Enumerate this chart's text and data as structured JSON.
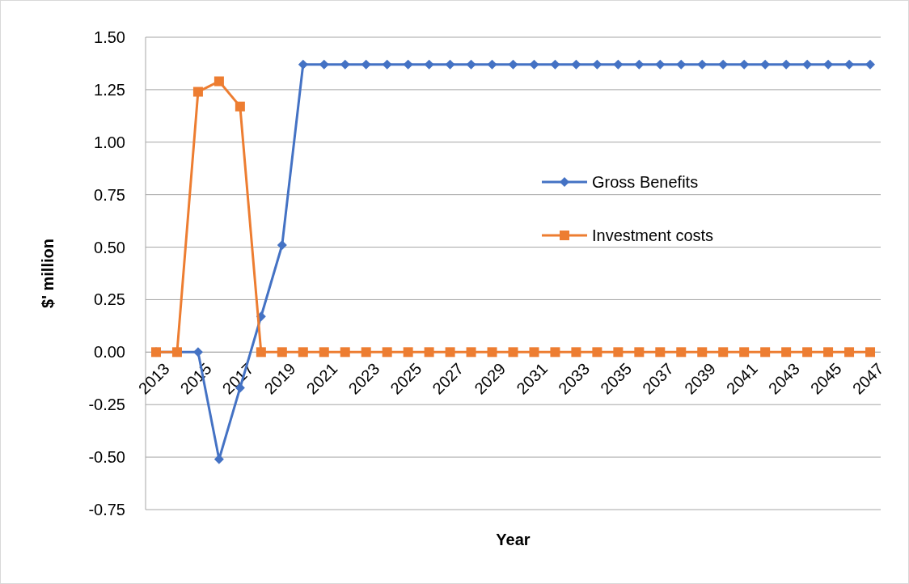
{
  "chart_data": {
    "type": "line",
    "xlabel": "Year",
    "ylabel": "$' million",
    "categories": [
      "2013",
      null,
      "2015",
      null,
      "2017",
      null,
      "2019",
      null,
      "2021",
      null,
      "2023",
      null,
      "2025",
      null,
      "2027",
      null,
      "2029",
      null,
      "2031",
      null,
      "2033",
      null,
      "2035",
      null,
      "2037",
      null,
      "2039",
      null,
      "2041",
      null,
      "2043",
      null,
      "2045",
      null,
      "2047"
    ],
    "series": [
      {
        "name": "Gross Benefits",
        "color": "#4472c4",
        "marker": "diamond",
        "values": [
          0,
          0,
          0,
          -0.51,
          -0.17,
          0.17,
          0.51,
          1.37,
          1.37,
          1.37,
          1.37,
          1.37,
          1.37,
          1.37,
          1.37,
          1.37,
          1.37,
          1.37,
          1.37,
          1.37,
          1.37,
          1.37,
          1.37,
          1.37,
          1.37,
          1.37,
          1.37,
          1.37,
          1.37,
          1.37,
          1.37,
          1.37,
          1.37,
          1.37,
          1.37
        ]
      },
      {
        "name": "Investment costs",
        "color": "#ed7d31",
        "marker": "square",
        "values": [
          0,
          0,
          1.24,
          1.29,
          1.17,
          0,
          0,
          0,
          0,
          0,
          0,
          0,
          0,
          0,
          0,
          0,
          0,
          0,
          0,
          0,
          0,
          0,
          0,
          0,
          0,
          0,
          0,
          0,
          0,
          0,
          0,
          0,
          0,
          0,
          0
        ]
      }
    ],
    "ylim": [
      -0.75,
      1.5
    ],
    "yticks": [
      {
        "value": 1.5,
        "label": "1.50"
      },
      {
        "value": 1.25,
        "label": "1.25"
      },
      {
        "value": 1,
        "label": "1.00"
      },
      {
        "value": 0.75,
        "label": "0.75"
      },
      {
        "value": 0.5,
        "label": "0.50"
      },
      {
        "value": 0.25,
        "label": "0.25"
      },
      {
        "value": 0,
        "label": "0.00"
      },
      {
        "value": -0.25,
        "label": "-0.25"
      },
      {
        "value": -0.5,
        "label": "-0.50"
      },
      {
        "value": -0.75,
        "label": "-0.75"
      }
    ],
    "grid": "y",
    "legend": "right"
  }
}
